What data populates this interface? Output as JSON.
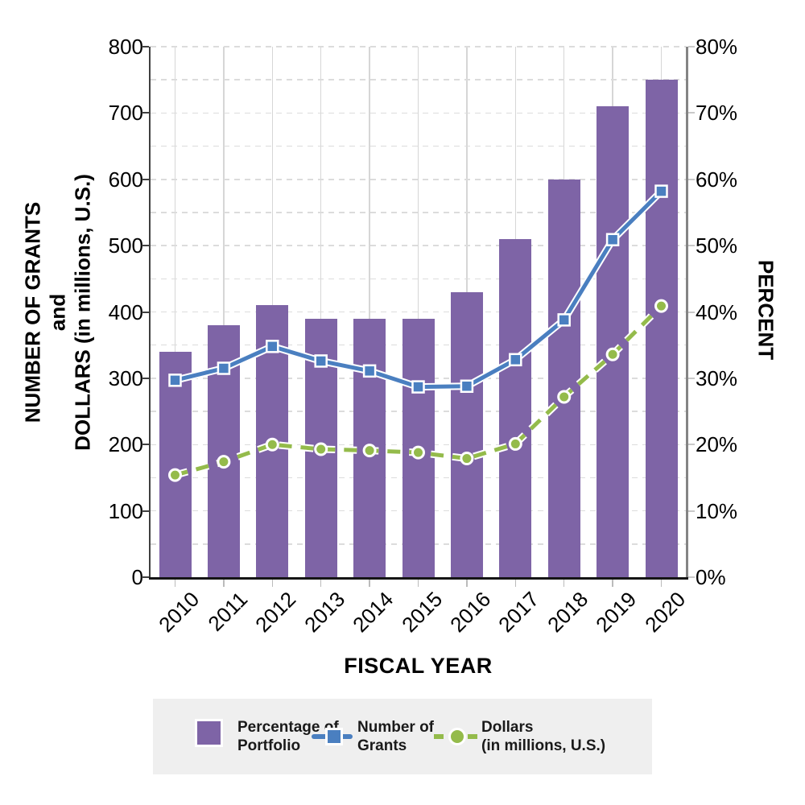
{
  "chart_data": {
    "type": "combo-bar-line",
    "x_axis": {
      "title": "FISCAL YEAR",
      "categories": [
        "2010",
        "2011",
        "2012",
        "2013",
        "2014",
        "2015",
        "2016",
        "2017",
        "2018",
        "2019",
        "2020"
      ]
    },
    "left_axis": {
      "title_lines": [
        "NUMBER OF GRANTS",
        "and",
        "DOLLARS (in millions, U.S.)"
      ],
      "min": 0,
      "max": 800,
      "major_tick_step": 100,
      "minor_gridline_step": 50,
      "tick_labels": [
        "0",
        "100",
        "200",
        "300",
        "400",
        "500",
        "600",
        "700",
        "800"
      ]
    },
    "right_axis": {
      "title": "PERCENT",
      "min": 0,
      "max": 80,
      "major_tick_step": 10,
      "tick_labels": [
        "0%",
        "10%",
        "20%",
        "30%",
        "40%",
        "50%",
        "60%",
        "70%",
        "80%"
      ]
    },
    "series": [
      {
        "name": "Percentage of Portfolio",
        "type": "bar",
        "axis": "right",
        "unit": "%",
        "color": "#7E64A6",
        "values": [
          34,
          38,
          41,
          39,
          39,
          39,
          43,
          51,
          60,
          71,
          75
        ]
      },
      {
        "name": "Number of Grants",
        "type": "line",
        "axis": "left",
        "marker": "square",
        "color": "#4A7FC0",
        "values": [
          297,
          315,
          348,
          326,
          311,
          287,
          288,
          328,
          388,
          509,
          582
        ]
      },
      {
        "name": "Dollars (in millions, U.S.)",
        "type": "dashed-line",
        "axis": "left",
        "marker": "circle",
        "color": "#94BB4B",
        "values": [
          154,
          174,
          200,
          193,
          191,
          188,
          179,
          201,
          272,
          336,
          409
        ]
      }
    ],
    "legend": {
      "position": "bottom",
      "background": "#EFEFEF",
      "items": [
        {
          "swatch": "bar-square",
          "color": "#7E64A6",
          "lines": [
            "Percentage of",
            "Portfolio"
          ]
        },
        {
          "swatch": "line-with-square-marker",
          "color": "#4A7FC0",
          "lines": [
            "Number of",
            "Grants"
          ]
        },
        {
          "swatch": "dashed-line-with-circle-marker",
          "color": "#94BB4B",
          "lines": [
            "Dollars",
            "(in millions, U.S.)"
          ]
        }
      ]
    },
    "grid": {
      "horizontal": "dashed, every 50 left-axis units",
      "vertical": "solid, at each category center"
    },
    "colors": {
      "grid_dashed": "#DCDCDC",
      "grid_vertical": "#D6D6D6",
      "left_spine": "#3F3F3F",
      "bottom_spine": "#151515",
      "right_spine": "#848484",
      "tick_text": "#000000",
      "legend_background": "#EFEFEF"
    }
  }
}
